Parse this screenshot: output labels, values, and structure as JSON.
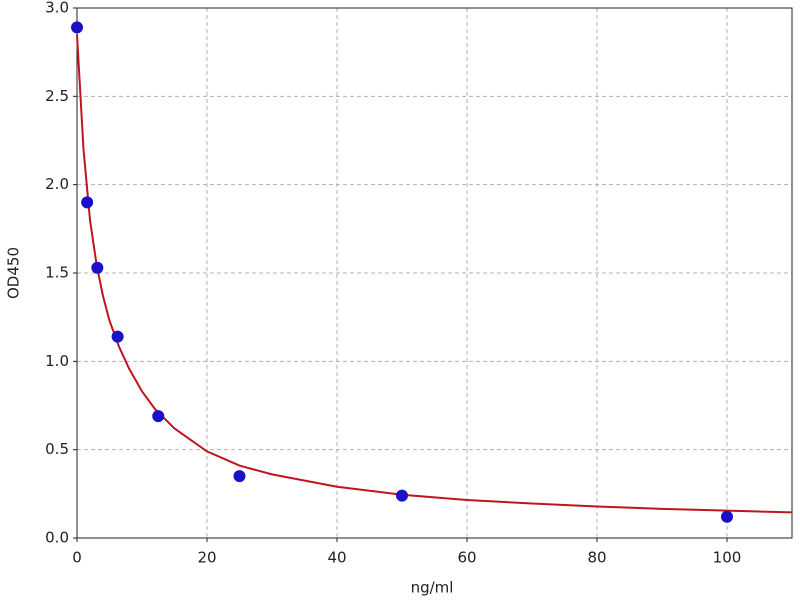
{
  "chart_data": {
    "type": "scatter",
    "x_label": "ng/ml",
    "y_label": "OD450",
    "x": [
      0,
      1.5625,
      3.125,
      6.25,
      12.5,
      25,
      50,
      100
    ],
    "values": [
      2.89,
      1.9,
      1.53,
      1.14,
      0.69,
      0.35,
      0.24,
      0.12
    ],
    "color": "#1a10c8",
    "fit": {
      "x": [
        0,
        1,
        2,
        3,
        4,
        5,
        6.5,
        8,
        10,
        12,
        15,
        20,
        25,
        30,
        40,
        50,
        60,
        70,
        80,
        90,
        100,
        110
      ],
      "values": [
        2.85,
        2.2,
        1.8,
        1.55,
        1.37,
        1.23,
        1.08,
        0.96,
        0.83,
        0.73,
        0.62,
        0.49,
        0.41,
        0.36,
        0.29,
        0.245,
        0.215,
        0.195,
        0.178,
        0.165,
        0.155,
        0.145
      ],
      "color": "#c0141e"
    },
    "xlim": [
      0,
      110
    ],
    "ylim": [
      0,
      3.0
    ],
    "xticks": [
      0,
      20,
      40,
      60,
      80,
      100
    ],
    "yticks": [
      {
        "value": 0,
        "label": "0.0"
      },
      {
        "value": 0.5,
        "label": "0.5"
      },
      {
        "value": 1,
        "label": "1.0"
      },
      {
        "value": 1.5,
        "label": "1.5"
      },
      {
        "value": 2,
        "label": "2.0"
      },
      {
        "value": 2.5,
        "label": "2.5"
      },
      {
        "value": 3,
        "label": "3.0"
      }
    ],
    "grid": true
  }
}
